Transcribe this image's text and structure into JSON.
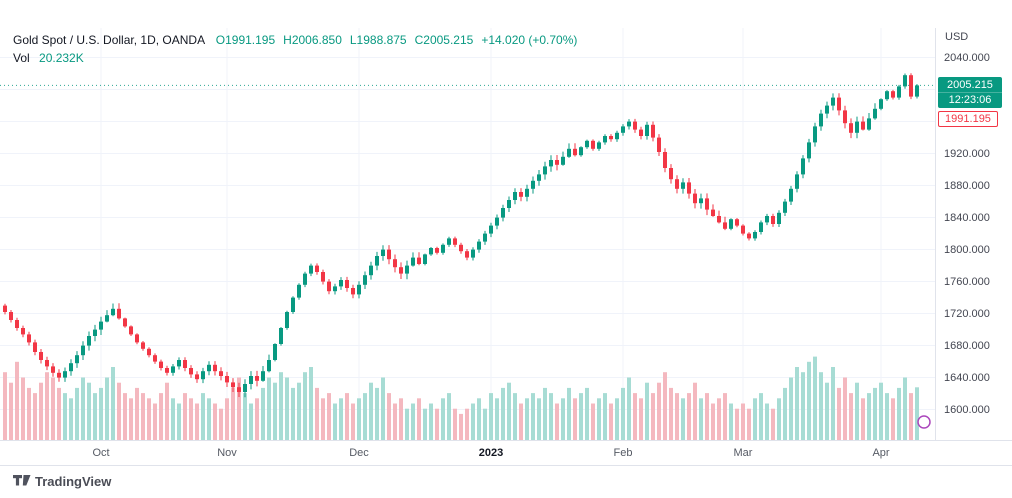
{
  "header": {
    "symbol_title": "Gold Spot / U.S. Dollar, 1D, OANDA",
    "ohlc_parts": [
      "O1991.195",
      "H2006.850",
      "L1988.875",
      "C2005.215",
      "+14.020 (+0.70%)"
    ],
    "vol_label": "Vol",
    "vol_value": "20.232K"
  },
  "price_axis": {
    "currency": "USD",
    "tick_labels": [
      "2040.000",
      "2000.000",
      "1960.000",
      "1920.000",
      "1880.000",
      "1840.000",
      "1800.000",
      "1760.000",
      "1720.000",
      "1680.000",
      "1640.000",
      "1600.000"
    ],
    "tick_values": [
      2040,
      2000,
      1960,
      1920,
      1880,
      1840,
      1800,
      1760,
      1720,
      1680,
      1640,
      1600
    ]
  },
  "badges": {
    "last_price": "2005.215",
    "last_time": "12:23:06",
    "open_price": "1991.195"
  },
  "time_axis": {
    "months": [
      {
        "label": "Oct",
        "index": 16
      },
      {
        "label": "Nov",
        "index": 37
      },
      {
        "label": "Dec",
        "index": 59
      },
      {
        "label": "2023",
        "index": 81,
        "year": true
      },
      {
        "label": "Feb",
        "index": 103
      },
      {
        "label": "Mar",
        "index": 123
      },
      {
        "label": "Apr",
        "index": 146
      }
    ]
  },
  "footer": {
    "brand": "TradingView"
  },
  "colors": {
    "up": "#089981",
    "down": "#f23645",
    "vol_up": "#a7dcd4",
    "vol_down": "#f4b8bf",
    "grid": "#f0f3fa",
    "axis_border": "#e0e3eb",
    "axis_text": "#434651",
    "marker_purple": "#ab47bc"
  },
  "chart_data": {
    "type": "candlestick",
    "title": "Gold Spot / U.S. Dollar, 1D, OANDA",
    "ylabel": "USD",
    "ylim_visible": [
      1562,
      2077
    ],
    "x_span": "Sep 2022 - Apr 2023",
    "grid": true,
    "last_candle": {
      "open": 1991.195,
      "high": 2006.85,
      "low": 1988.875,
      "close": 2005.215,
      "change": "+14.020",
      "change_pct": "+0.70%",
      "volume_k": 20.232
    },
    "closes": [
      1722,
      1712,
      1702,
      1694,
      1684,
      1672,
      1662,
      1654,
      1646,
      1640,
      1648,
      1658,
      1668,
      1680,
      1692,
      1700,
      1710,
      1718,
      1726,
      1714,
      1704,
      1694,
      1684,
      1676,
      1668,
      1660,
      1652,
      1646,
      1654,
      1662,
      1652,
      1644,
      1638,
      1648,
      1656,
      1648,
      1642,
      1634,
      1628,
      1622,
      1632,
      1642,
      1636,
      1648,
      1662,
      1682,
      1702,
      1722,
      1740,
      1756,
      1770,
      1780,
      1772,
      1760,
      1748,
      1754,
      1762,
      1752,
      1744,
      1756,
      1768,
      1780,
      1792,
      1800,
      1788,
      1778,
      1770,
      1780,
      1790,
      1782,
      1794,
      1802,
      1796,
      1806,
      1814,
      1806,
      1798,
      1790,
      1800,
      1810,
      1820,
      1830,
      1840,
      1852,
      1862,
      1872,
      1866,
      1876,
      1886,
      1894,
      1904,
      1912,
      1906,
      1916,
      1926,
      1918,
      1928,
      1936,
      1926,
      1934,
      1942,
      1938,
      1946,
      1954,
      1960,
      1950,
      1942,
      1956,
      1940,
      1922,
      1902,
      1888,
      1876,
      1884,
      1870,
      1858,
      1864,
      1850,
      1842,
      1834,
      1826,
      1838,
      1830,
      1820,
      1814,
      1822,
      1834,
      1842,
      1832,
      1846,
      1860,
      1876,
      1894,
      1914,
      1934,
      1954,
      1970,
      1980,
      1990,
      1974,
      1958,
      1946,
      1960,
      1950,
      1964,
      1976,
      1988,
      1998,
      1990,
      2004,
      2018,
      1991.195,
      2005.215
    ],
    "volumes_k": [
      26,
      22,
      30,
      24,
      20,
      18,
      22,
      26,
      24,
      20,
      18,
      16,
      20,
      24,
      22,
      18,
      20,
      24,
      28,
      22,
      18,
      16,
      20,
      18,
      16,
      14,
      18,
      22,
      16,
      14,
      18,
      16,
      14,
      18,
      16,
      14,
      12,
      16,
      20,
      24,
      18,
      14,
      16,
      20,
      24,
      22,
      26,
      24,
      20,
      22,
      26,
      28,
      20,
      16,
      18,
      14,
      16,
      18,
      14,
      16,
      18,
      22,
      20,
      24,
      18,
      14,
      16,
      12,
      14,
      16,
      12,
      14,
      12,
      16,
      18,
      12,
      10,
      12,
      14,
      16,
      12,
      18,
      16,
      20,
      22,
      18,
      14,
      16,
      18,
      16,
      20,
      18,
      14,
      16,
      20,
      16,
      18,
      20,
      14,
      16,
      18,
      14,
      16,
      20,
      24,
      18,
      16,
      22,
      18,
      22,
      26,
      20,
      18,
      16,
      18,
      22,
      16,
      18,
      14,
      16,
      18,
      14,
      12,
      14,
      12,
      16,
      18,
      14,
      12,
      16,
      20,
      24,
      28,
      26,
      30,
      32,
      26,
      22,
      28,
      20,
      24,
      18,
      22,
      16,
      18,
      20,
      22,
      18,
      16,
      20,
      24,
      18,
      20.232
    ]
  }
}
